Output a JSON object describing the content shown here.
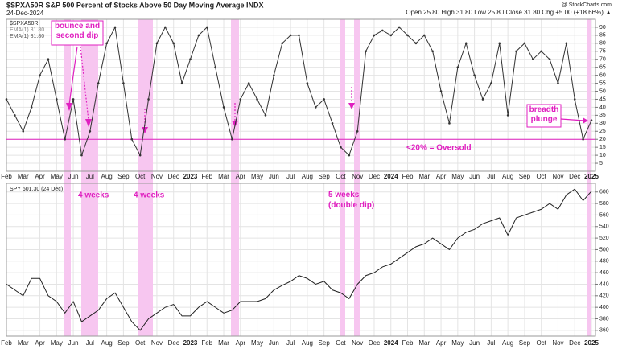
{
  "chart_data": [
    {
      "type": "line",
      "title": "$SPXA50R S&P 500 Percent of Stocks Above 50 Day Moving Average INDX",
      "subtitle": "24-Dec-2024",
      "source": "@ StockCharts.com",
      "quote": "Open 25.80 High 31.80 Low 25.80 Close 31.80 Chg +5.00 (+18.66%) ▲",
      "legend_extra": [
        "EMA(1) 31.80",
        "EMA(1) 31.80"
      ],
      "annotations": [
        "bounce and second dip",
        "breadth plunge",
        "<20% = Oversold"
      ],
      "threshold": 20,
      "categories": [
        "Feb",
        null,
        "Mar",
        null,
        "Apr",
        null,
        "May",
        null,
        "Jun",
        null,
        "Jul",
        null,
        "Aug",
        null,
        "Sep",
        null,
        "Oct",
        null,
        "Nov",
        null,
        "Dec",
        null,
        "2023",
        null,
        "Feb",
        null,
        "Mar",
        null,
        "Apr",
        null,
        "May",
        null,
        "Jun",
        null,
        "Jul",
        null,
        "Aug",
        null,
        "Sep",
        null,
        "Oct",
        null,
        "Nov",
        null,
        "Dec",
        null,
        "2024",
        null,
        "Feb",
        null,
        "Mar",
        null,
        "Apr",
        null,
        "May",
        null,
        "Jun",
        null,
        "Jul",
        null,
        "Aug",
        null,
        "Sep",
        null,
        "Oct",
        null,
        "Nov",
        null,
        "Dec",
        null,
        "2025"
      ],
      "series": [
        {
          "name": "$SPXA50R",
          "color": "#333333",
          "values": [
            45,
            35,
            25,
            40,
            60,
            70,
            45,
            20,
            45,
            10,
            25,
            55,
            80,
            90,
            55,
            20,
            10,
            45,
            80,
            90,
            80,
            55,
            70,
            85,
            90,
            65,
            40,
            20,
            45,
            55,
            45,
            35,
            60,
            80,
            85,
            85,
            55,
            40,
            45,
            30,
            15,
            10,
            25,
            75,
            85,
            88,
            85,
            90,
            85,
            80,
            85,
            75,
            50,
            30,
            65,
            80,
            60,
            45,
            55,
            80,
            35,
            75,
            80,
            70,
            75,
            70,
            55,
            80,
            45,
            20,
            31.8
          ]
        }
      ],
      "ylim": [
        0,
        95
      ],
      "yticks": [
        5,
        10,
        15,
        20,
        25,
        30,
        35,
        40,
        45,
        50,
        55,
        60,
        65,
        70,
        75,
        80,
        85,
        90
      ],
      "grid": true
    },
    {
      "type": "line",
      "annotations": [
        "4 weeks",
        "4 weeks",
        "5 weeks (double dip)"
      ],
      "categories": [
        "Feb",
        null,
        "Mar",
        null,
        "Apr",
        null,
        "May",
        null,
        "Jun",
        null,
        "Jul",
        null,
        "Aug",
        null,
        "Sep",
        null,
        "Oct",
        null,
        "Nov",
        null,
        "Dec",
        null,
        "2023",
        null,
        "Feb",
        null,
        "Mar",
        null,
        "Apr",
        null,
        "May",
        null,
        "Jun",
        null,
        "Jul",
        null,
        "Aug",
        null,
        "Sep",
        null,
        "Oct",
        null,
        "Nov",
        null,
        "Dec",
        null,
        "2024",
        null,
        "Feb",
        null,
        "Mar",
        null,
        "Apr",
        null,
        "May",
        null,
        "Jun",
        null,
        "Jul",
        null,
        "Aug",
        null,
        "Sep",
        null,
        "Oct",
        null,
        "Nov",
        null,
        "Dec",
        null,
        "2025"
      ],
      "series": [
        {
          "name": "SPY 601.30 (24 Dec)",
          "color": "#222222",
          "values": [
            440,
            430,
            420,
            450,
            450,
            420,
            410,
            390,
            410,
            375,
            385,
            395,
            415,
            425,
            400,
            375,
            360,
            380,
            390,
            400,
            405,
            385,
            385,
            400,
            410,
            400,
            390,
            395,
            410,
            410,
            410,
            415,
            430,
            438,
            445,
            455,
            450,
            440,
            445,
            430,
            425,
            415,
            440,
            455,
            460,
            470,
            475,
            485,
            495,
            505,
            510,
            520,
            510,
            500,
            520,
            530,
            535,
            545,
            550,
            555,
            525,
            555,
            560,
            565,
            570,
            580,
            570,
            595,
            605,
            585,
            601.3
          ]
        }
      ],
      "ylim": [
        350,
        615
      ],
      "yticks": [
        360,
        380,
        400,
        420,
        440,
        460,
        480,
        500,
        520,
        540,
        560,
        580,
        600
      ],
      "grid": true
    }
  ]
}
